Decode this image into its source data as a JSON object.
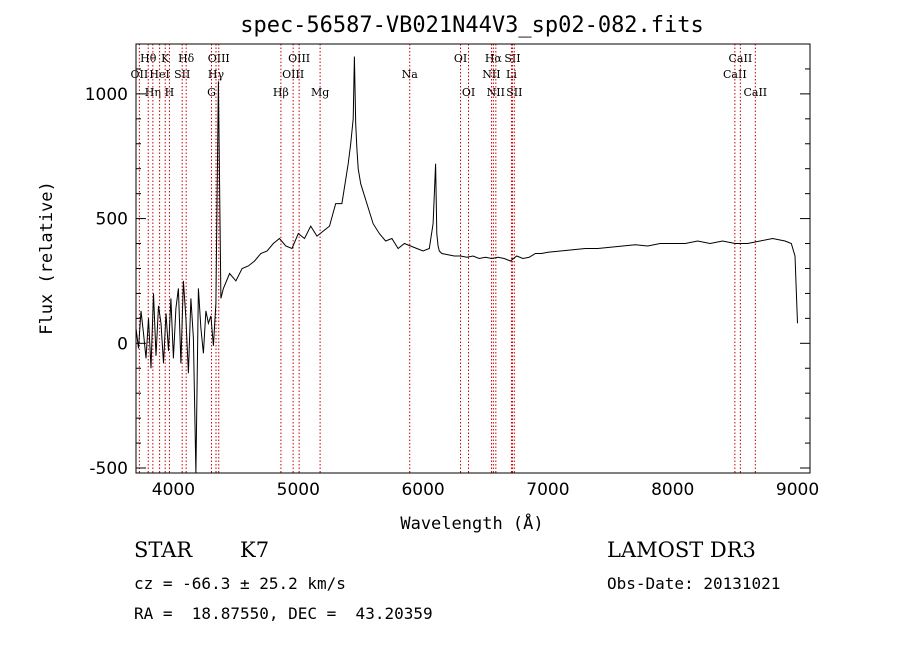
{
  "chart_data": {
    "type": "line",
    "title": "spec-56587-VB021N44V3_sp02-082.fits",
    "xlabel": "Wavelength (Å)",
    "ylabel": "Flux (relative)",
    "xlim": [
      3700,
      9100
    ],
    "ylim": [
      -520,
      1200
    ],
    "x_ticks": [
      4000,
      5000,
      6000,
      7000,
      8000,
      9000
    ],
    "y_ticks": [
      -500,
      0,
      500,
      1000
    ],
    "grid": false,
    "line_color": "#000000",
    "marker_color": "#cc0000",
    "series": [
      {
        "x": [
          3700,
          3720,
          3740,
          3760,
          3780,
          3800,
          3820,
          3840,
          3860,
          3880,
          3900,
          3920,
          3940,
          3960,
          3980,
          4000,
          4020,
          4040,
          4060,
          4080,
          4100,
          4120,
          4140,
          4160,
          4180,
          4200,
          4220,
          4240,
          4260,
          4280,
          4300,
          4320,
          4340,
          4360,
          4380,
          4400,
          4450,
          4500,
          4550,
          4600,
          4650,
          4700,
          4750,
          4800,
          4850,
          4900,
          4950,
          5000,
          5050,
          5100,
          5150,
          5200,
          5250,
          5300,
          5350,
          5400,
          5420,
          5440,
          5450,
          5460,
          5470,
          5480,
          5500,
          5550,
          5600,
          5650,
          5700,
          5750,
          5800,
          5850,
          5900,
          5950,
          6000,
          6050,
          6080,
          6100,
          6110,
          6120,
          6130,
          6150,
          6200,
          6250,
          6300,
          6350,
          6400,
          6450,
          6500,
          6550,
          6600,
          6650,
          6700,
          6750,
          6800,
          6850,
          6900,
          6950,
          7000,
          7100,
          7200,
          7300,
          7400,
          7500,
          7600,
          7700,
          7800,
          7900,
          8000,
          8100,
          8200,
          8300,
          8400,
          8500,
          8600,
          8700,
          8800,
          8900,
          8950,
          8980,
          9000
        ],
        "y": [
          60,
          -20,
          130,
          40,
          -60,
          100,
          -100,
          200,
          -50,
          150,
          80,
          -80,
          120,
          -30,
          180,
          -60,
          140,
          220,
          -80,
          250,
          100,
          -120,
          180,
          20,
          -600,
          220,
          60,
          -40,
          130,
          80,
          110,
          -10,
          160,
          1050,
          180,
          220,
          280,
          250,
          300,
          310,
          330,
          360,
          370,
          400,
          420,
          390,
          380,
          440,
          420,
          470,
          430,
          450,
          470,
          560,
          560,
          720,
          800,
          900,
          1150,
          880,
          780,
          700,
          640,
          560,
          480,
          440,
          410,
          420,
          380,
          400,
          390,
          380,
          370,
          380,
          480,
          720,
          440,
          390,
          370,
          360,
          355,
          350,
          350,
          345,
          350,
          340,
          345,
          340,
          345,
          340,
          330,
          350,
          340,
          345,
          360,
          360,
          365,
          370,
          375,
          380,
          380,
          385,
          390,
          395,
          390,
          400,
          400,
          400,
          410,
          400,
          410,
          400,
          400,
          410,
          420,
          410,
          400,
          350,
          80
        ]
      }
    ],
    "line_markers": [
      {
        "label": "OII",
        "wl": 3727,
        "row": 2
      },
      {
        "label": "Hθ",
        "wl": 3798,
        "row": 1
      },
      {
        "label": "Hη",
        "wl": 3835,
        "row": 3
      },
      {
        "label": "HeI",
        "wl": 3889,
        "row": 2
      },
      {
        "label": "K",
        "wl": 3934,
        "row": 1
      },
      {
        "label": "H",
        "wl": 3968,
        "row": 3
      },
      {
        "label": "SII",
        "wl": 4070,
        "row": 2
      },
      {
        "label": "Hδ",
        "wl": 4102,
        "row": 1
      },
      {
        "label": "G",
        "wl": 4305,
        "row": 3
      },
      {
        "label": "Hγ",
        "wl": 4341,
        "row": 2
      },
      {
        "label": "OIII",
        "wl": 4363,
        "row": 1
      },
      {
        "label": "Hβ",
        "wl": 4861,
        "row": 3
      },
      {
        "label": "OIII",
        "wl": 4959,
        "row": 2
      },
      {
        "label": "OIII",
        "wl": 5007,
        "row": 1
      },
      {
        "label": "Mg",
        "wl": 5175,
        "row": 3
      },
      {
        "label": "Na",
        "wl": 5893,
        "row": 2
      },
      {
        "label": "OI",
        "wl": 6300,
        "row": 1
      },
      {
        "label": "OI",
        "wl": 6364,
        "row": 3
      },
      {
        "label": "NII",
        "wl": 6548,
        "row": 2
      },
      {
        "label": "Hα",
        "wl": 6563,
        "row": 1
      },
      {
        "label": "NII",
        "wl": 6583,
        "row": 3
      },
      {
        "label": "Li",
        "wl": 6708,
        "row": 2
      },
      {
        "label": "SII",
        "wl": 6716,
        "row": 1
      },
      {
        "label": "SII",
        "wl": 6731,
        "row": 3
      },
      {
        "label": "CaII",
        "wl": 8498,
        "row": 2
      },
      {
        "label": "CaII",
        "wl": 8542,
        "row": 1
      },
      {
        "label": "CaII",
        "wl": 8662,
        "row": 3
      }
    ]
  },
  "info": {
    "class": "STAR",
    "subclass": "K7",
    "survey": "LAMOST DR3",
    "cz": "cz = -66.3 ± 25.2 km/s",
    "obs_date": "Obs-Date: 20131021",
    "radec": "RA =  18.87550, DEC =  43.20359"
  }
}
